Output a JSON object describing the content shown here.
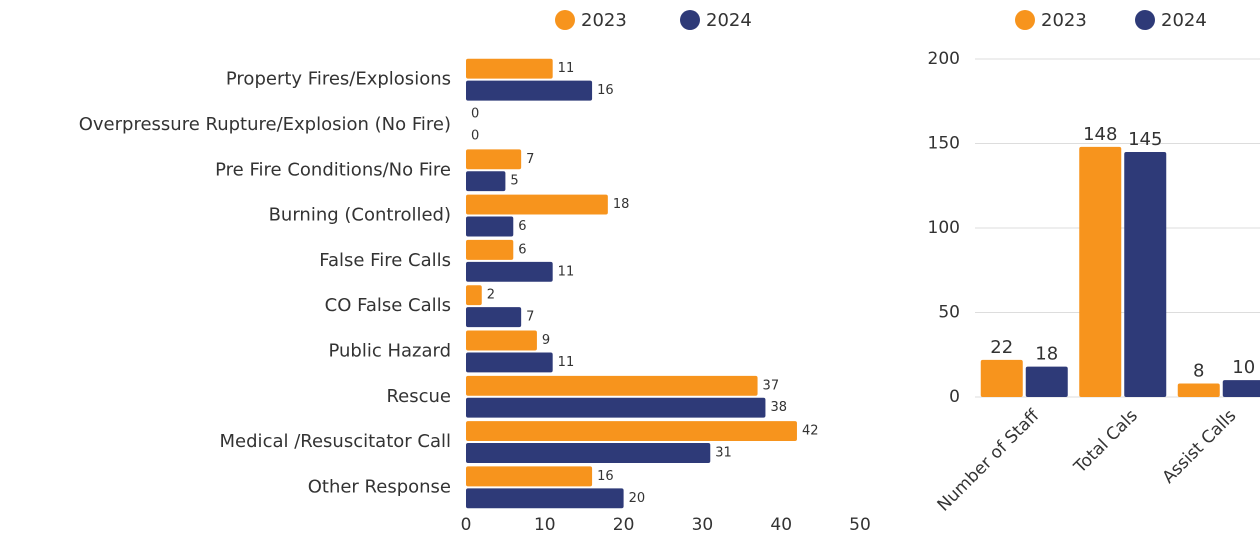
{
  "chart_data": [
    {
      "type": "barh",
      "categories": [
        "Property Fires/Explosions",
        "Overpressure Rupture/Explosion (No Fire)",
        "Pre Fire Conditions/No Fire",
        "Burning (Controlled)",
        "False Fire Calls",
        "CO False Calls",
        "Public Hazard",
        "Rescue",
        "Medical /Resuscitator Call",
        "Other Response"
      ],
      "series": [
        {
          "name": "2023",
          "color": "#f7941d",
          "values": [
            11,
            0,
            7,
            18,
            6,
            2,
            9,
            37,
            42,
            16
          ]
        },
        {
          "name": "2024",
          "color": "#2e3a78",
          "values": [
            16,
            0,
            5,
            6,
            11,
            7,
            11,
            38,
            31,
            20
          ]
        }
      ],
      "xlim": [
        0,
        50
      ],
      "xticks": [
        0,
        10,
        20,
        30,
        40,
        50
      ],
      "grid": false
    },
    {
      "type": "bar",
      "categories": [
        "Number of Staff",
        "Total Cals",
        "Assist Calls"
      ],
      "series": [
        {
          "name": "2023",
          "color": "#f7941d",
          "values": [
            22,
            148,
            8
          ]
        },
        {
          "name": "2024",
          "color": "#2e3a78",
          "values": [
            18,
            145,
            10
          ]
        }
      ],
      "ylim": [
        0,
        200
      ],
      "yticks": [
        0,
        50,
        100,
        150,
        200
      ],
      "grid": true
    }
  ]
}
